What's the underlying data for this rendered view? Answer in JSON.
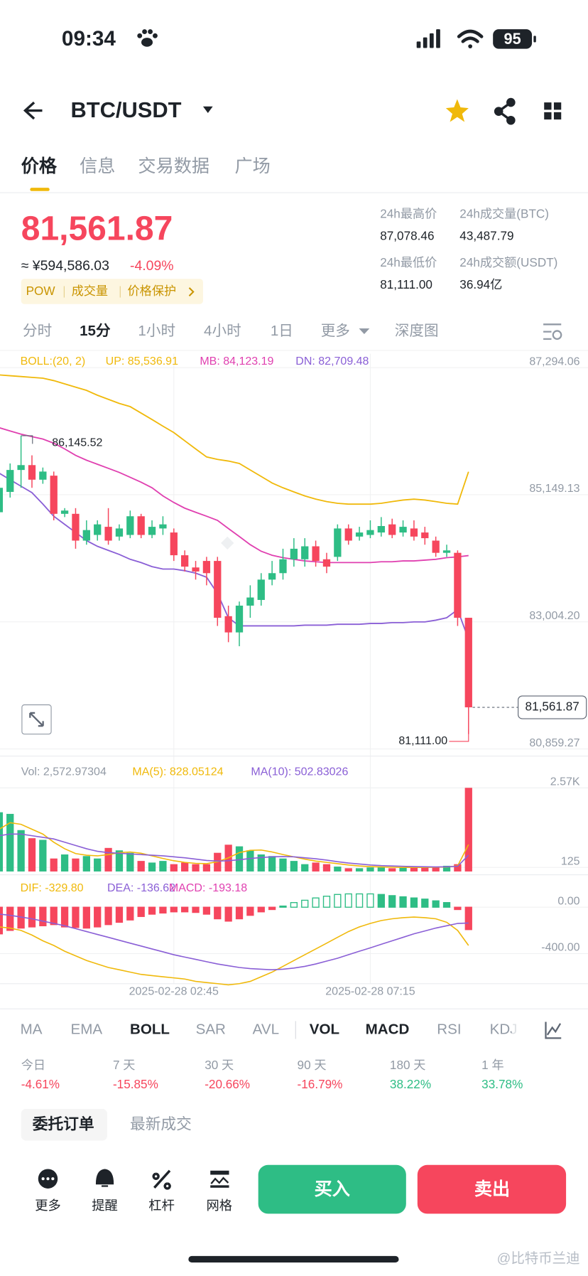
{
  "status": {
    "time": "09:34",
    "battery": "95"
  },
  "header": {
    "pair": "BTC/USDT"
  },
  "tabs": [
    "价格",
    "信息",
    "交易数据",
    "广场"
  ],
  "price": {
    "last": "81,561.87",
    "cny": "≈ ¥594,586.03",
    "change": "-4.09%",
    "tags": [
      "POW",
      "成交量",
      "价格保护"
    ]
  },
  "stats": [
    {
      "label": "24h最高价",
      "value": "87,078.46"
    },
    {
      "label": "24h成交量(BTC)",
      "value": "43,487.79"
    },
    {
      "label": "24h最低价",
      "value": "81,111.00"
    },
    {
      "label": "24h成交额(USDT)",
      "value": "36.94亿"
    }
  ],
  "intervals": [
    "分时",
    "15分",
    "1小时",
    "4小时",
    "1日",
    "更多",
    "深度图"
  ],
  "chart_data": {
    "type": "candlestick",
    "candles": [
      [
        84854,
        85266,
        85403,
        84512
      ],
      [
        85197,
        85567,
        85677,
        85101
      ],
      [
        85567,
        85649,
        86145.52,
        85266
      ],
      [
        85649,
        85403,
        85814,
        85266
      ],
      [
        85403,
        85540,
        85608,
        85334
      ],
      [
        85471,
        84827,
        85540,
        84717
      ],
      [
        84827,
        84882,
        84923,
        84772
      ],
      [
        84827,
        84375,
        84923,
        84238
      ],
      [
        84375,
        84553,
        84717,
        84306
      ],
      [
        84471,
        84649,
        84717,
        84375
      ],
      [
        84608,
        84375,
        84923,
        84306
      ],
      [
        84443,
        84580,
        84649,
        84375
      ],
      [
        84471,
        84786,
        84882,
        84416
      ],
      [
        84786,
        84471,
        84827,
        84416
      ],
      [
        84471,
        84608,
        84717,
        84416
      ],
      [
        84580,
        84649,
        84786,
        84471
      ],
      [
        84512,
        84128,
        84580,
        84032
      ],
      [
        84128,
        83936,
        84210,
        83854
      ],
      [
        83922,
        83854,
        84032,
        83717
      ],
      [
        84032,
        83826,
        84101,
        83621
      ],
      [
        84032,
        83073,
        84101,
        82935
      ],
      [
        83100,
        82826,
        83278,
        82661
      ],
      [
        82826,
        83278,
        83347,
        82593
      ],
      [
        83278,
        83415,
        83621,
        83073
      ],
      [
        83374,
        83717,
        83826,
        83278
      ],
      [
        83717,
        83826,
        84032,
        83621
      ],
      [
        83826,
        84060,
        84238,
        83717
      ],
      [
        84060,
        84238,
        84416,
        83936
      ],
      [
        84060,
        84279,
        84416,
        83936
      ],
      [
        84279,
        84032,
        84375,
        83936
      ],
      [
        84060,
        83936,
        84169,
        83826
      ],
      [
        84101,
        84580,
        84649,
        84032
      ],
      [
        84580,
        84375,
        84649,
        84306
      ],
      [
        84443,
        84512,
        84608,
        84375
      ],
      [
        84471,
        84553,
        84717,
        84416
      ],
      [
        84512,
        84621,
        84772,
        84443
      ],
      [
        84649,
        84471,
        84745,
        84416
      ],
      [
        84512,
        84608,
        84717,
        84443
      ],
      [
        84580,
        84443,
        84717,
        84375
      ],
      [
        84512,
        84416,
        84608,
        84306
      ],
      [
        84375,
        84169,
        84443,
        84101
      ],
      [
        84169,
        84210,
        84306,
        84101
      ],
      [
        84169,
        83073,
        84210,
        82935
      ],
      [
        83073,
        81561.87,
        83073,
        81111
      ]
    ],
    "up_color": "#2ebd85",
    "down_color": "#f6465d",
    "ylim": [
      80740,
      87530
    ],
    "yticks": [
      {
        "value": 87294.06,
        "label": "87,294.06"
      },
      {
        "value": 85149.13,
        "label": "85,149.13"
      },
      {
        "value": 83004.2,
        "label": "83,004.20"
      },
      {
        "value": 80859.27,
        "label": "80,859.27"
      }
    ],
    "xticks": [
      {
        "value": 16,
        "label": "2025-02-28 02:45"
      },
      {
        "value": 34,
        "label": "2025-02-28 07:15"
      }
    ],
    "high_mark": {
      "value": 86145.52,
      "label": "86,145.52"
    },
    "low_mark": {
      "value": 81111,
      "label": "81,111.00"
    },
    "last_price": {
      "value": 81561.87,
      "label": "81,561.87"
    },
    "boll": {
      "label": "BOLL:(20, 2)",
      "series": [
        {
          "label": "UP: 85,536.91",
          "color": "#f0b90b",
          "values": [
            87171,
            87157,
            87143,
            87130,
            87116,
            87075,
            87020,
            86965,
            86910,
            86828,
            86759,
            86691,
            86636,
            86527,
            86417,
            86307,
            86198,
            86060,
            85923,
            85786,
            85745,
            85718,
            85677,
            85567,
            85458,
            85348,
            85266,
            85197,
            85129,
            85074,
            85033,
            85005,
            84991,
            84991,
            84991,
            85005,
            85033,
            85060,
            85074,
            85060,
            85033,
            85005,
            84991,
            85536.91
          ]
        },
        {
          "label": "MB: 84,123.19",
          "color": "#e040b0",
          "values": [
            86280,
            86225,
            86170,
            86129,
            86088,
            86019,
            85923,
            85814,
            85732,
            85663,
            85595,
            85526,
            85444,
            85362,
            85266,
            85129,
            85019,
            84923,
            84854,
            84786,
            84717,
            84580,
            84443,
            84306,
            84196,
            84128,
            84087,
            84060,
            84032,
            84019,
            84005,
            84005,
            84005,
            84005,
            84005,
            84019,
            84019,
            84032,
            84032,
            84046,
            84060,
            84087,
            84101,
            84123.19
          ]
        },
        {
          "label": "DN: 82,709.48",
          "color": "#8a5fd6",
          "values": [
            85512,
            85403,
            85293,
            85184,
            84991,
            84786,
            84649,
            84512,
            84375,
            84279,
            84210,
            84142,
            84060,
            84005,
            83936,
            83895,
            83895,
            83868,
            83827,
            83758,
            83484,
            83073,
            82936,
            82936,
            82936,
            82936,
            82936,
            82936,
            82949,
            82949,
            82949,
            82963,
            82963,
            82963,
            82977,
            82977,
            82991,
            82991,
            83004,
            83004,
            83032,
            83073,
            83210,
            82709.48
          ]
        }
      ]
    },
    "volume": {
      "label": "Vol: 2,572.97304",
      "values": [
        1821,
        1771,
        1272,
        1023,
        973,
        399,
        524,
        399,
        474,
        399,
        724,
        649,
        574,
        324,
        274,
        324,
        225,
        274,
        225,
        225,
        574,
        823,
        773,
        649,
        524,
        474,
        399,
        324,
        225,
        274,
        225,
        150,
        100,
        100,
        125,
        125,
        100,
        125,
        125,
        125,
        150,
        175,
        225,
        2572.97304
      ],
      "ylim": [
        0,
        3300
      ],
      "yticks": [
        {
          "value": 2570,
          "label": "2.57K"
        },
        125
      ],
      "ma": [
        {
          "label": "MA(5): 828.05124",
          "color": "#f0b90b",
          "values": [
            1300,
            1500,
            1450,
            1300,
            1150,
            900,
            700,
            550,
            500,
            480,
            520,
            580,
            600,
            560,
            480,
            400,
            330,
            280,
            250,
            240,
            300,
            420,
            580,
            650,
            660,
            600,
            520,
            450,
            380,
            320,
            280,
            240,
            200,
            170,
            150,
            140,
            130,
            125,
            125,
            125,
            130,
            140,
            170,
            828.05124
          ]
        },
        {
          "label": "MA(10): 502.83026",
          "color": "#8a5fd6",
          "values": [
            1100,
            1150,
            1150,
            1100,
            1050,
            1000,
            900,
            800,
            700,
            620,
            580,
            560,
            540,
            520,
            500,
            480,
            450,
            420,
            380,
            340,
            320,
            330,
            360,
            400,
            430,
            450,
            460,
            450,
            420,
            390,
            350,
            300,
            260,
            230,
            200,
            180,
            170,
            160,
            150,
            145,
            140,
            145,
            160,
            502.83026
          ]
        }
      ]
    },
    "macd": {
      "label": "MACD: -193.18",
      "label_color": "#e040b0",
      "hist": [
        -230,
        -200,
        -180,
        -170,
        -160,
        -150,
        -170,
        -175,
        -180,
        -170,
        -150,
        -130,
        -110,
        -80,
        -60,
        -50,
        -40,
        -40,
        -45,
        -60,
        -100,
        -120,
        -100,
        -70,
        -40,
        -20,
        10,
        40,
        60,
        80,
        95,
        110,
        115,
        115,
        115,
        110,
        100,
        90,
        80,
        70,
        55,
        40,
        -20,
        -193.18
      ],
      "ylim": [
        -700,
        220
      ],
      "yticks": [
        {
          "value": 0,
          "label": "0.00"
        },
        {
          "value": -400,
          "label": "-400.00"
        }
      ],
      "lines": [
        {
          "label": "DIF: -329.80",
          "color": "#f0b90b",
          "values": [
            -170,
            -180,
            -200,
            -240,
            -290,
            -330,
            -380,
            -420,
            -460,
            -490,
            -520,
            -540,
            -560,
            -580,
            -590,
            -600,
            -610,
            -620,
            -640,
            -650,
            -660,
            -670,
            -660,
            -640,
            -600,
            -560,
            -510,
            -460,
            -410,
            -360,
            -310,
            -260,
            -210,
            -170,
            -140,
            -115,
            -100,
            -90,
            -85,
            -90,
            -100,
            -130,
            -200,
            -329.8
          ]
        },
        {
          "label": "DEA: -136.62",
          "color": "#8a5fd6",
          "values": [
            -60,
            -70,
            -85,
            -100,
            -120,
            -140,
            -160,
            -185,
            -210,
            -235,
            -260,
            -285,
            -310,
            -335,
            -360,
            -385,
            -410,
            -430,
            -450,
            -470,
            -490,
            -505,
            -520,
            -530,
            -535,
            -540,
            -535,
            -525,
            -510,
            -490,
            -465,
            -440,
            -410,
            -380,
            -350,
            -320,
            -290,
            -260,
            -230,
            -205,
            -180,
            -160,
            -140,
            -136.62
          ]
        }
      ]
    }
  },
  "indicators": [
    "MA",
    "EMA",
    "BOLL",
    "SAR",
    "AVL",
    "VOL",
    "MACD",
    "RSI",
    "KDJ"
  ],
  "performance": [
    {
      "label": "今日",
      "value": "-4.61%"
    },
    {
      "label": "7 天",
      "value": "-15.85%"
    },
    {
      "label": "30 天",
      "value": "-20.66%"
    },
    {
      "label": "90 天",
      "value": "-16.79%"
    },
    {
      "label": "180 天",
      "value": "38.22%"
    },
    {
      "label": "1 年",
      "value": "33.78%"
    }
  ],
  "order_tabs": [
    "委托订单",
    "最新成交"
  ],
  "bottom": {
    "actions": [
      "更多",
      "提醒",
      "杠杆",
      "网格"
    ],
    "buy": "买入",
    "sell": "卖出"
  },
  "watermark": "@比特币兰迪"
}
